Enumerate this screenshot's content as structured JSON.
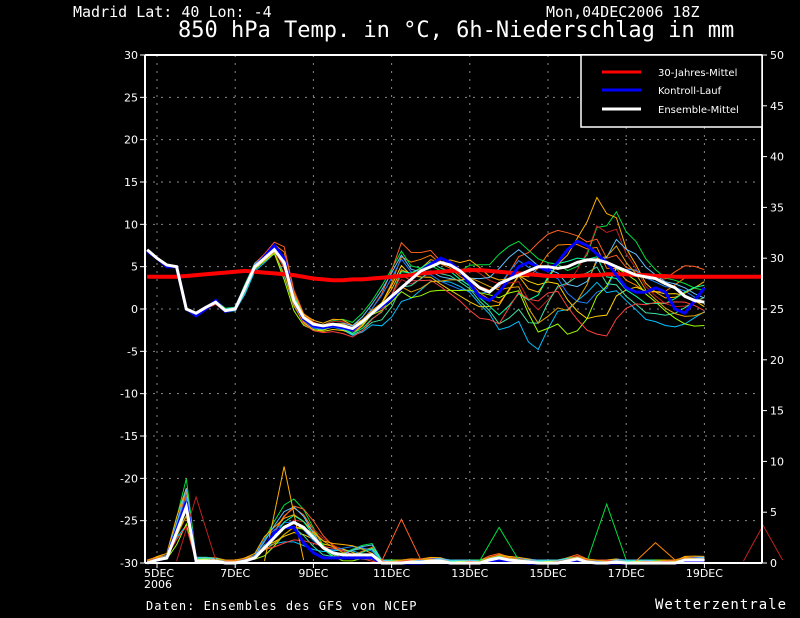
{
  "header": {
    "location": "Madrid  Lat: 40 Lon: -4",
    "run_date": "Mon,04DEC2006 18Z",
    "title": "850 hPa Temp. in °C, 6h-Niederschlag in mm"
  },
  "footer": {
    "source": "Daten: Ensembles des GFS von NCEP",
    "brand": "Wetterzentrale"
  },
  "chart_data": {
    "type": "line",
    "title": "850 hPa Temp. in °C, 6h-Niederschlag in mm",
    "xlabel": "",
    "ylabel": "850 hPa Temp. (°C)",
    "y2label": "6h-Niederschlag (mm)",
    "ylim": [
      -30,
      30
    ],
    "y2lim": [
      0,
      50
    ],
    "yticks": [
      "30",
      "25",
      "20",
      "15",
      "10",
      "5",
      "0",
      "-5",
      "-10",
      "-15",
      "-20",
      "-25",
      "-30"
    ],
    "y2ticks": [
      "50",
      "45",
      "40",
      "35",
      "30",
      "25",
      "20",
      "15",
      "10",
      "5",
      "0"
    ],
    "xticks": [
      "5DEC\n2006",
      "7DEC",
      "9DEC",
      "11DEC",
      "13DEC",
      "15DEC",
      "17DEC",
      "19DEC"
    ],
    "x_unit": "days since 5DEC2006 00Z (6-hourly steps starting -0.25)",
    "grid": true,
    "legend_position": "top-right",
    "legend": [
      {
        "name": "30-Jahres-Mittel",
        "color": "#ff0000"
      },
      {
        "name": "Kontroll-Lauf",
        "color": "#0000ff"
      },
      {
        "name": "Ensemble-Mittel",
        "color": "#ffffff"
      }
    ],
    "temperature": {
      "x_start": -0.25,
      "x_step": 0.25,
      "climate_mean": [
        3.8,
        3.8,
        3.8,
        3.8,
        3.9,
        4.0,
        4.1,
        4.2,
        4.3,
        4.4,
        4.5,
        4.4,
        4.3,
        4.2,
        4.1,
        4.0,
        3.8,
        3.6,
        3.5,
        3.4,
        3.4,
        3.5,
        3.5,
        3.6,
        3.7,
        3.8,
        3.9,
        4.0,
        4.2,
        4.3,
        4.4,
        4.5,
        4.5,
        4.6,
        4.6,
        4.5,
        4.4,
        4.3,
        4.2,
        4.1,
        4.0,
        3.9,
        3.9,
        3.9,
        3.9,
        4.0,
        4.0,
        4.1,
        4.1,
        4.1,
        4.0,
        4.0,
        3.9,
        3.9,
        3.8,
        3.8,
        3.8,
        3.8,
        3.8,
        3.8,
        3.8,
        3.8,
        3.8,
        3.8
      ],
      "ensemble_mean": [
        7.0,
        6.0,
        5.2,
        5.0,
        0.0,
        -0.5,
        0.2,
        0.8,
        -0.2,
        0.0,
        2.5,
        5.0,
        6.0,
        7.0,
        5.5,
        1.0,
        -1.0,
        -1.8,
        -2.0,
        -1.8,
        -2.0,
        -2.3,
        -1.5,
        -0.5,
        0.5,
        1.5,
        2.5,
        3.5,
        4.5,
        5.0,
        5.5,
        5.2,
        4.5,
        3.5,
        2.5,
        2.0,
        3.0,
        3.5,
        4.0,
        4.5,
        5.0,
        5.0,
        4.8,
        5.0,
        5.5,
        5.8,
        5.8,
        5.5,
        5.0,
        4.5,
        4.0,
        3.8,
        3.6,
        3.0,
        2.5,
        1.5,
        1.0,
        0.8
      ],
      "control_run": [
        6.8,
        6.0,
        5.0,
        5.0,
        0.0,
        -0.8,
        0.0,
        1.0,
        -0.3,
        0.0,
        2.5,
        5.0,
        6.2,
        7.5,
        6.0,
        1.0,
        -1.2,
        -2.0,
        -2.2,
        -2.0,
        -2.2,
        -2.5,
        -1.5,
        -0.5,
        0.3,
        1.2,
        2.5,
        3.5,
        4.5,
        5.3,
        6.0,
        5.5,
        4.5,
        3.0,
        1.5,
        1.0,
        2.0,
        3.5,
        5.0,
        5.5,
        5.0,
        4.5,
        5.5,
        7.0,
        8.0,
        7.5,
        6.5,
        5.5,
        4.0,
        2.5,
        2.0,
        2.0,
        2.5,
        2.0,
        0.0,
        -0.5,
        1.0,
        2.5
      ],
      "members_max_approx": [
        7.5,
        6.5,
        5.5,
        5.5,
        0.5,
        0.0,
        0.5,
        1.5,
        0.5,
        0.5,
        3.5,
        6.0,
        7.0,
        8.5,
        8.5,
        3.0,
        0.0,
        -1.0,
        -1.5,
        -1.0,
        -1.0,
        -1.5,
        -0.5,
        1.0,
        3.0,
        5.5,
        8.5,
        7.0,
        7.0,
        7.5,
        6.5,
        6.5,
        6.0,
        6.5,
        6.0,
        5.5,
        6.5,
        7.5,
        8.5,
        8.5,
        9.0,
        9.5,
        10.0,
        10.5,
        11.5,
        12.5,
        15.0,
        13.0,
        13.0,
        9.5,
        8.0,
        6.0,
        5.0,
        4.5,
        5.0,
        5.5
      ],
      "members_min_approx": [
        6.5,
        5.5,
        4.5,
        4.5,
        -0.5,
        -1.0,
        -0.5,
        0.0,
        -0.8,
        -0.5,
        1.0,
        4.0,
        5.0,
        6.0,
        2.0,
        -1.0,
        -2.5,
        -3.0,
        -3.0,
        -2.8,
        -3.0,
        -3.5,
        -3.0,
        -2.0,
        -2.0,
        -1.0,
        0.5,
        0.5,
        1.0,
        1.5,
        1.5,
        1.0,
        0.5,
        -0.5,
        -1.5,
        -2.0,
        -3.5,
        -2.5,
        -1.5,
        -4.0,
        -5.5,
        -4.0,
        -3.0,
        -4.5,
        -5.0,
        -5.0,
        -4.5,
        -4.0,
        -2.0,
        -1.0,
        -1.0,
        -1.5,
        -1.5,
        -2.0,
        -2.5,
        -2.8
      ]
    },
    "precipitation": {
      "x_start": -0.25,
      "x_step": 0.25,
      "ensemble_mean": [
        0.0,
        0.3,
        0.5,
        3.0,
        5.5,
        0.2,
        0.2,
        0.2,
        0.0,
        0.0,
        0.2,
        0.5,
        1.5,
        2.5,
        3.5,
        4.0,
        3.5,
        2.5,
        1.5,
        1.0,
        0.8,
        0.8,
        0.8,
        0.8,
        0.0,
        0.0,
        0.0,
        0.1,
        0.1,
        0.2,
        0.2,
        0.0,
        0.0,
        0.0,
        0.0,
        0.3,
        0.5,
        0.3,
        0.2,
        0.1,
        0.0,
        0.0,
        0.0,
        0.2,
        0.4,
        0.1,
        0.0,
        0.0,
        0.1,
        0.0,
        0.0,
        0.0,
        0.0,
        0.0,
        0.0,
        0.3,
        0.3,
        0.3
      ],
      "control_run": [
        0.0,
        0.3,
        0.5,
        3.3,
        6.0,
        0.2,
        0.2,
        0.2,
        0.0,
        0.0,
        0.2,
        0.5,
        1.5,
        3.0,
        3.5,
        3.5,
        2.0,
        1.0,
        0.5,
        0.5,
        0.5,
        0.5,
        0.5,
        0.5,
        0.0,
        0.0,
        0.0,
        0.0,
        0.0,
        0.1,
        0.1,
        0.0,
        0.0,
        0.0,
        0.0,
        0.2,
        0.3,
        0.2,
        0.1,
        0.0,
        0.0,
        0.0,
        0.0,
        0.2,
        0.3,
        0.1,
        0.0,
        0.0,
        0.0,
        0.0,
        0.0,
        0.0,
        0.0,
        0.0,
        0.0,
        0.2,
        0.2,
        0.2
      ],
      "notable_member_peaks": [
        {
          "x": 1.0,
          "value": 6.5
        },
        {
          "x": 3.25,
          "value": 9.5
        },
        {
          "x": 6.25,
          "value": 4.3
        },
        {
          "x": 8.75,
          "value": 3.5
        },
        {
          "x": 11.5,
          "value": 5.8
        },
        {
          "x": 12.75,
          "value": 2.0
        },
        {
          "x": 15.5,
          "value": 3.7
        }
      ]
    }
  }
}
